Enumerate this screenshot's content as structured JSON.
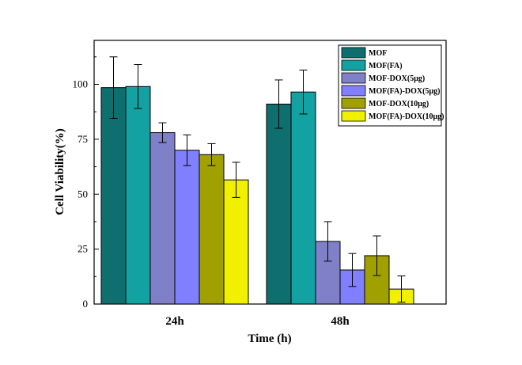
{
  "chart_data": {
    "type": "bar",
    "categories": [
      "24h",
      "48h"
    ],
    "xlabel": "Time (h)",
    "ylabel": "Cell Viability(%)",
    "ylim": [
      0,
      120
    ],
    "yticks": [
      0,
      25,
      50,
      75,
      100
    ],
    "grid": false,
    "legend_position": "top-right",
    "series": [
      {
        "name": "MOF",
        "color": "#0f6e6e",
        "values": [
          98.5,
          91
        ],
        "errors": [
          14,
          11
        ]
      },
      {
        "name": "MOF(FA)",
        "color": "#13a1a1",
        "values": [
          99,
          96.5
        ],
        "errors": [
          10,
          10
        ]
      },
      {
        "name": "MOF-DOX(5μg)",
        "color": "#8080c8",
        "values": [
          78,
          28.5
        ],
        "errors": [
          4.5,
          9
        ]
      },
      {
        "name": "MOF(FA)-DOX(5μg)",
        "color": "#8080ff",
        "values": [
          70,
          15.5
        ],
        "errors": [
          7,
          7.5
        ]
      },
      {
        "name": "MOF-DOX(10μg)",
        "color": "#a0a000",
        "values": [
          68,
          22
        ],
        "errors": [
          5,
          9
        ]
      },
      {
        "name": "MOF(FA)-DOX(10μg)",
        "color": "#f0f000",
        "values": [
          56.5,
          6.8
        ],
        "errors": [
          8,
          6
        ]
      }
    ]
  }
}
